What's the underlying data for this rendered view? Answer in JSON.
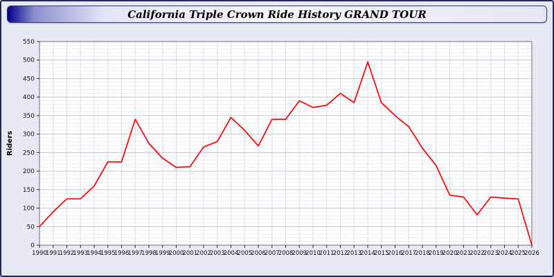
{
  "header": {
    "title": "California Triple Crown Ride History GRAND TOUR"
  },
  "chart_data": {
    "type": "line",
    "title": "California Triple Crown Ride History GRAND TOUR",
    "xlabel": "",
    "ylabel": "Riders",
    "ylim": [
      0,
      550
    ],
    "ytick_step": 50,
    "ytick_minor_step": 10,
    "grid": true,
    "legend": "none",
    "line_color": "#ff0000",
    "x": [
      1990,
      1991,
      1992,
      1993,
      1994,
      1995,
      1996,
      1997,
      1998,
      1999,
      2000,
      2001,
      2002,
      2003,
      2004,
      2005,
      2006,
      2007,
      2008,
      2009,
      2010,
      2011,
      2012,
      2013,
      2014,
      2015,
      2016,
      2017,
      2018,
      2019,
      2020,
      2021,
      2022,
      2023,
      2024,
      2025,
      2026
    ],
    "values": [
      50,
      90,
      125,
      125,
      160,
      225,
      225,
      340,
      275,
      235,
      210,
      212,
      265,
      280,
      345,
      310,
      268,
      340,
      340,
      390,
      372,
      378,
      410,
      385,
      495,
      385,
      350,
      320,
      262,
      215,
      135,
      130,
      82,
      130,
      127,
      125,
      0
    ]
  }
}
